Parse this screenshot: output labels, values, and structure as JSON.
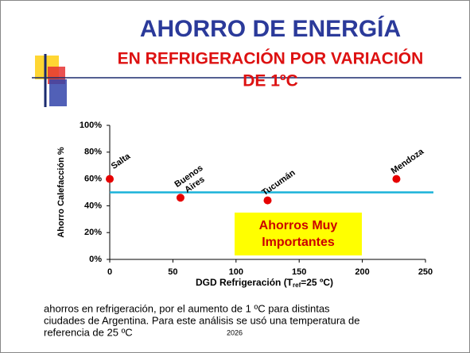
{
  "header": {
    "title": "AHORRO DE ENERGÍA",
    "subtitle_lines": [
      "EN REFRIGERACIÓN POR VARIACIÓN",
      "DE 1ºC"
    ]
  },
  "chart_data": {
    "type": "scatter",
    "categories": [
      "Salta",
      "Buenos Aires",
      "Tucumán",
      "Mendoza"
    ],
    "x": [
      0,
      56,
      125,
      227
    ],
    "values": [
      60,
      46,
      44,
      60
    ],
    "color": "#e60000",
    "reference_line": {
      "value": 50,
      "color": "#1ab2d9"
    },
    "xlim": [
      0,
      250
    ],
    "xticks": [
      0,
      50,
      100,
      150,
      200,
      250
    ],
    "ylim": [
      0,
      100
    ],
    "yticks": [
      {
        "value": 0,
        "label": "0%"
      },
      {
        "value": 20,
        "label": "20%"
      },
      {
        "value": 40,
        "label": "40%"
      },
      {
        "value": 60,
        "label": "60%"
      },
      {
        "value": 80,
        "label": "80%"
      },
      {
        "value": 100,
        "label": "100%"
      }
    ],
    "y_label": "Ahorro Calefacción  %",
    "x_label": {
      "main": "DGD Refrigeración (T",
      "sub": "ref",
      "rest": "=25 ºC)"
    },
    "annotation": {
      "lines": [
        "Ahorros Muy",
        "Importantes"
      ],
      "fill": "#ffff00",
      "color": "#cc0000"
    }
  },
  "caption": {
    "lines": [
      "ahorros en refrigeración, por el aumento de 1 ºC para distintas",
      "ciudades de Argentina. Para este análisis se usó una temperatura de",
      "referencia de 25 ºC"
    ],
    "year": "2026"
  }
}
